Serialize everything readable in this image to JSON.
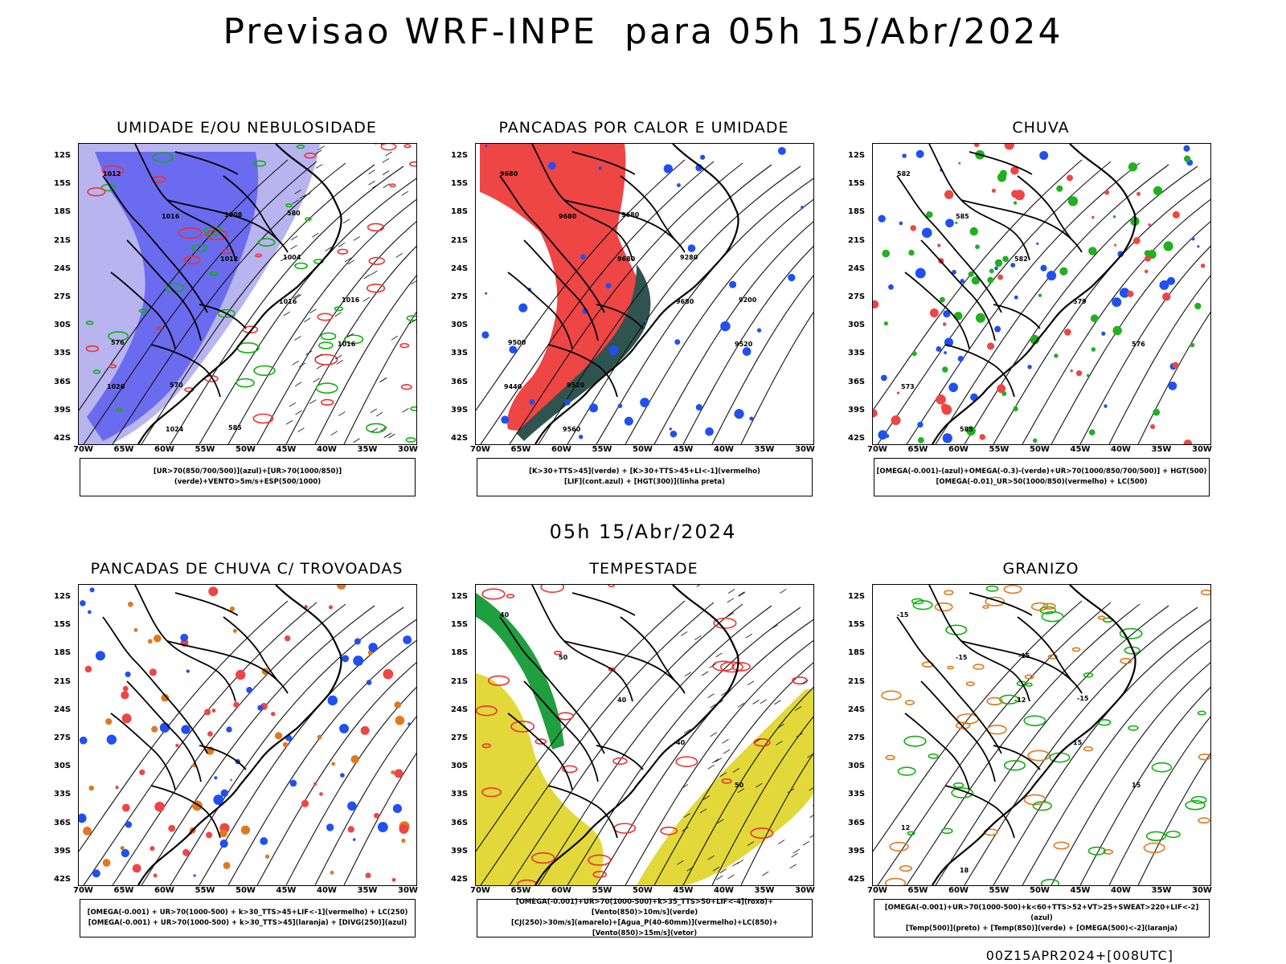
{
  "title": "Previsao WRF-INPE  para 05h 15/Abr/2024",
  "mid_date": "05h 15/Abr/2024",
  "footer": "00Z15APR2024+[008UTC]",
  "lat_labels": [
    "12S",
    "15S",
    "18S",
    "21S",
    "24S",
    "27S",
    "30S",
    "33S",
    "36S",
    "39S",
    "42S"
  ],
  "lon_labels": [
    "70W",
    "65W",
    "60W",
    "55W",
    "50W",
    "45W",
    "40W",
    "35W",
    "30W"
  ],
  "colors": {
    "humidity_blue": "#6b6bef",
    "humidity_light": "#b7b4f0",
    "green_contour": "#10b010",
    "red_contour": "#f03030",
    "red_fill": "#ee4545",
    "dark_teal": "#2f5450",
    "blue_scatter": "#2050f0",
    "green_scatter": "#20b020",
    "orange_scatter": "#e07820",
    "yellow_fill": "#e2d83a",
    "green_fill": "#1f9f3f"
  },
  "panels": [
    {
      "id": "umidade",
      "title": "UMIDADE E/OU NEBULOSIDADE",
      "legend": [
        "[UR>70(850/700/500)](azul)+[UR>70(1000/850)](verde)+VENTO>5m/s+ESP(500/1000)"
      ],
      "contour_labels": [
        "1012",
        "1016",
        "1012",
        "1016",
        "1016",
        "1020",
        "1024",
        "1008",
        "1004",
        "1016",
        "576",
        "570",
        "585",
        "580"
      ]
    },
    {
      "id": "pancadas_calor",
      "title": "PANCADAS POR CALOR E UMIDADE",
      "legend": [
        "[K>30+TTS>45](verde) + [K>30+TTS>45+LI<-1](vermelho)",
        "[LIF](cont.azul) + [HGT(300)](linha preta)"
      ],
      "contour_labels": [
        "9680",
        "9680",
        "9680",
        "9680",
        "9520",
        "9440",
        "9560",
        "9680",
        "9280",
        "9200",
        "9500",
        "9520"
      ]
    },
    {
      "id": "chuva",
      "title": "CHUVA",
      "legend": [
        "[OMEGA(-0.001)-(azul)+OMEGA(-0.3)-(verde)+UR>70(1000/850/700/500)] + HGT(500)",
        "[OMEGA(-0.01)_UR>50(1000/850)(vermelho) + LC(500)"
      ],
      "contour_labels": [
        "582",
        "585",
        "582",
        "579",
        "576",
        "573",
        "585"
      ]
    },
    {
      "id": "pancadas_trovoadas",
      "title": "PANCADAS DE CHUVA C/ TROVOADAS",
      "legend": [
        "[OMEGA(-0.001) + UR>70(1000-500) + k>30_TTS>45+LIF<-1](vermelho) + LC(250)",
        "[OMEGA(-0.001) + UR>70(1000-500) + k>30_TTS>45](laranja) + [DIVG(250)](azul)"
      ],
      "contour_labels": []
    },
    {
      "id": "tempestade",
      "title": "TEMPESTADE",
      "legend": [
        "[OMEGA(-0.001)+UR>70(1000-500)+k>35_TTS>50+LIF<-4](roxo)+[Vento(850)>10m/s](verde)",
        "[CJ(250)>30m/s](amarelo)+[Agua_P(40-60mm)](vermelho)+LC(850)+[Vento(850)>15m/s](vetor)"
      ],
      "contour_labels": [
        "40",
        "50",
        "40",
        "40",
        "50"
      ]
    },
    {
      "id": "granizo",
      "title": "GRANIZO",
      "legend": [
        "[OMEGA(-0.001)+UR>70(1000-500)+k<60+TTS>52+VT>25+SWEAT>220+LIF<-2](azul)",
        "[Temp(500)](preto) + [Temp(850)](verde) + [OMEGA(500)<-2](laranja)"
      ],
      "contour_labels": [
        "-15",
        "-15",
        "-12",
        "15",
        "15",
        "12",
        "18",
        "-15",
        "-15"
      ]
    }
  ]
}
